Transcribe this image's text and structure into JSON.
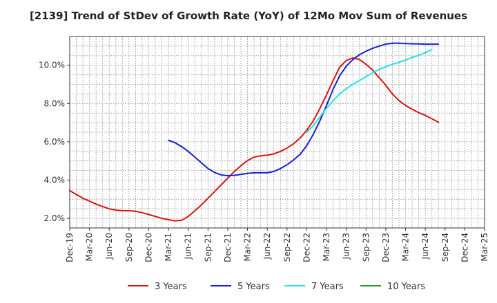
{
  "chart_data": {
    "type": "line",
    "title": "[2139]  Trend of StDev of Growth Rate (YoY) of 12Mo Mov Sum of Revenues",
    "xlabel": "",
    "ylabel": "",
    "ylim": [
      1.5,
      11.5
    ],
    "yticks": [
      2.0,
      4.0,
      6.0,
      8.0,
      10.0
    ],
    "ytick_labels": [
      "2.0%",
      "4.0%",
      "6.0%",
      "8.0%",
      "10.0%"
    ],
    "x_tick_labels": [
      "Dec-19",
      "Mar-20",
      "Jun-20",
      "Sep-20",
      "Dec-20",
      "Mar-21",
      "Jun-21",
      "Sep-21",
      "Dec-21",
      "Mar-22",
      "Jun-22",
      "Sep-22",
      "Dec-22",
      "Mar-23",
      "Jun-23",
      "Sep-23",
      "Dec-23",
      "Mar-24",
      "Jun-24",
      "Sep-24",
      "Dec-24",
      "Mar-25"
    ],
    "grid": true,
    "legend_position": "bottom",
    "series": [
      {
        "name": "3 Years",
        "color": "#dd1111",
        "start_index": 0,
        "values": [
          3.45,
          3.25,
          3.05,
          2.9,
          2.75,
          2.62,
          2.5,
          2.43,
          2.4,
          2.4,
          2.37,
          2.3,
          2.2,
          2.1,
          2.0,
          1.93,
          1.87,
          1.9,
          2.1,
          2.4,
          2.7,
          3.05,
          3.4,
          3.75,
          4.1,
          4.45,
          4.75,
          5.02,
          5.2,
          5.27,
          5.3,
          5.37,
          5.5,
          5.67,
          5.9,
          6.2,
          6.6,
          7.1,
          7.75,
          8.45,
          9.2,
          9.9,
          10.25,
          10.38,
          10.3,
          10.05,
          9.75,
          9.35,
          8.95,
          8.5,
          8.15,
          7.9,
          7.7,
          7.52,
          7.38,
          7.2,
          7.02
        ]
      },
      {
        "name": "5 Years",
        "color": "#1122cc",
        "start_index": 15,
        "values": [
          6.08,
          5.95,
          5.75,
          5.5,
          5.2,
          4.9,
          4.6,
          4.4,
          4.27,
          4.23,
          4.25,
          4.3,
          4.35,
          4.38,
          4.38,
          4.38,
          4.45,
          4.6,
          4.8,
          5.05,
          5.35,
          5.8,
          6.4,
          7.1,
          7.9,
          8.75,
          9.45,
          9.95,
          10.3,
          10.55,
          10.73,
          10.88,
          11.0,
          11.1,
          11.15,
          11.15,
          11.13,
          11.12,
          11.11,
          11.1,
          11.1,
          11.1
        ]
      },
      {
        "name": "7 Years",
        "color": "#22e5e5",
        "start_index": 36,
        "values": [
          6.5,
          6.85,
          7.3,
          7.75,
          8.15,
          8.5,
          8.78,
          9.0,
          9.2,
          9.4,
          9.6,
          9.78,
          9.92,
          10.05,
          10.15,
          10.27,
          10.4,
          10.52,
          10.65,
          10.82
        ]
      },
      {
        "name": "10 Years",
        "color": "#229922",
        "start_index": 0,
        "values": []
      }
    ]
  }
}
